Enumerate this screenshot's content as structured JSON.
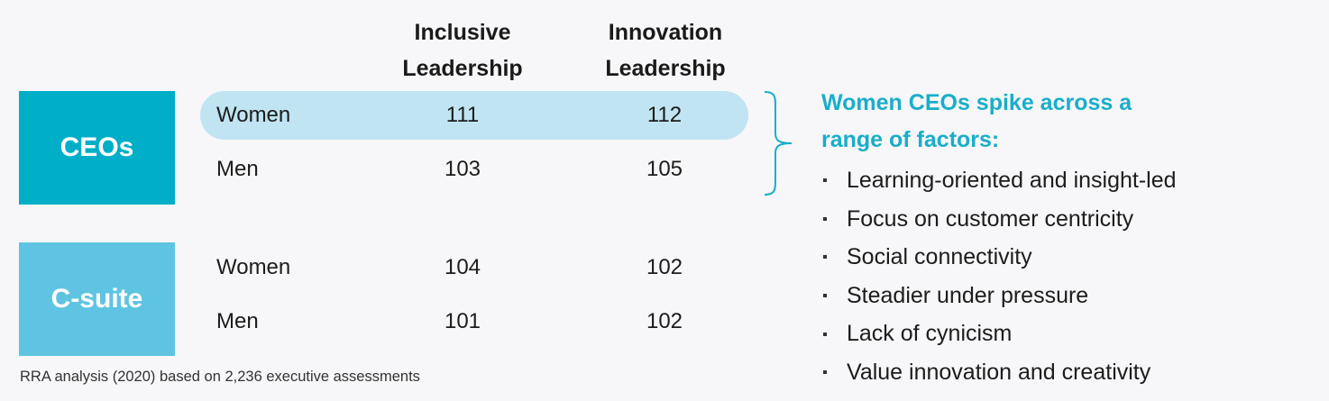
{
  "colors": {
    "ceos_box": "#00aec7",
    "csuite_box": "#5fc4e1",
    "highlight": "#c0e4f2",
    "accent_text": "#19aec9",
    "brace": "#19aec9"
  },
  "chart_data": {
    "type": "table",
    "columns": [
      {
        "line1": "Inclusive",
        "line2": "Leadership"
      },
      {
        "line1": "Innovation",
        "line2": "Leadership"
      }
    ],
    "groups": [
      {
        "label": "CEOs",
        "rows": [
          {
            "label": "Women",
            "values": [
              "111",
              "112"
            ],
            "highlighted": true
          },
          {
            "label": "Men",
            "values": [
              "103",
              "105"
            ],
            "highlighted": false
          }
        ]
      },
      {
        "label": "C-suite",
        "rows": [
          {
            "label": "Women",
            "values": [
              "104",
              "102"
            ],
            "highlighted": false
          },
          {
            "label": "Men",
            "values": [
              "101",
              "102"
            ],
            "highlighted": false
          }
        ]
      }
    ],
    "source": "RRA analysis (2020) based on 2,236 executive assessments"
  },
  "callout": {
    "line1": "Women CEOs spike across a",
    "line2": "range of factors:",
    "factors": [
      "Learning-oriented and insight-led",
      "Focus on customer centricity",
      "Social connectivity",
      "Steadier under pressure",
      "Lack of cynicism",
      "Value innovation and creativity"
    ]
  }
}
